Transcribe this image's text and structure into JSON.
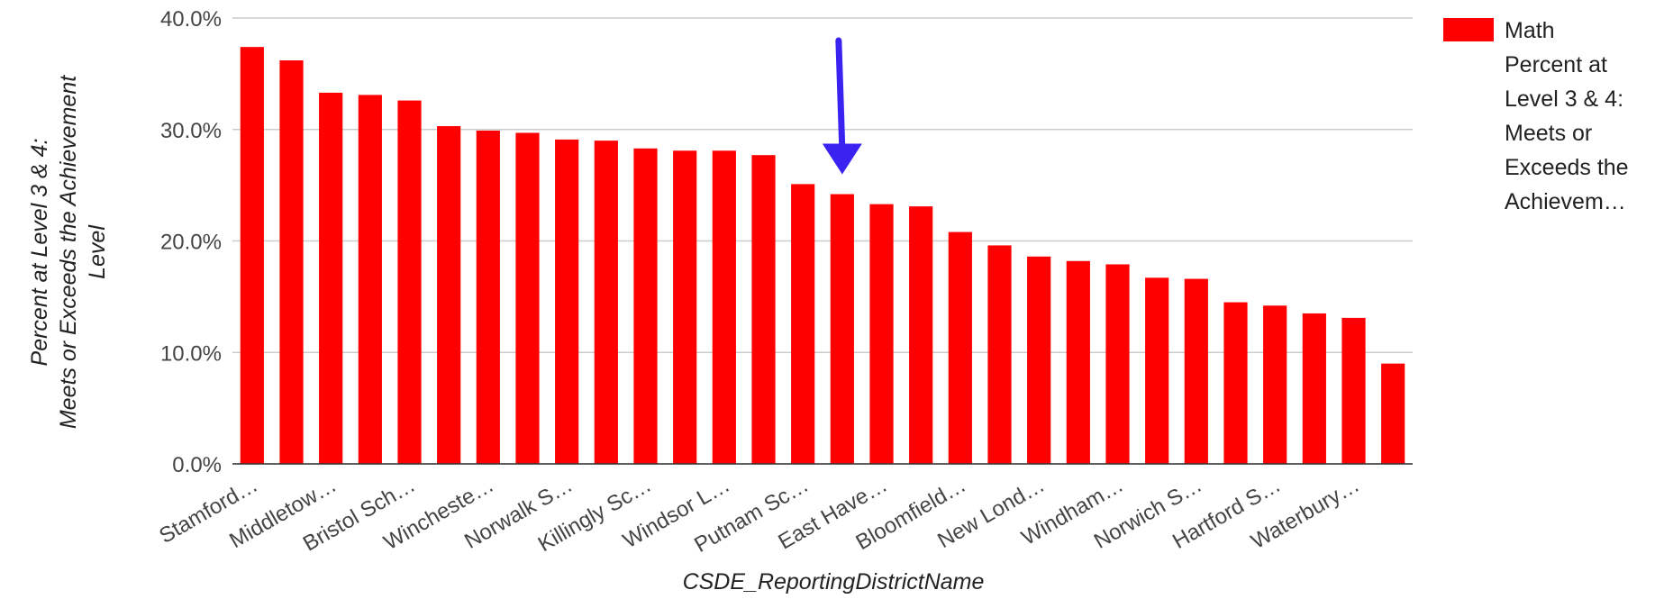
{
  "chart_data": {
    "type": "bar",
    "xlabel": "CSDE_ReportingDistrictName",
    "ylabel_lines": [
      "Percent at Level 3 & 4:",
      "Meets or Exceeds the Achievement",
      "Level"
    ],
    "ylim": [
      0,
      40
    ],
    "yticks": [
      0,
      10,
      20,
      30,
      40
    ],
    "ytick_labels": [
      "0.0%",
      "10.0%",
      "20.0%",
      "30.0%",
      "40.0%"
    ],
    "grid": true,
    "legend_position": "right",
    "series": [
      {
        "name_lines": [
          "Math",
          "Percent at",
          "Level 3 & 4:",
          "Meets or",
          "Exceeds the",
          "Achievem…"
        ],
        "color": "#ff0000",
        "values": [
          37.4,
          36.2,
          33.3,
          33.1,
          32.6,
          30.3,
          29.9,
          29.7,
          29.1,
          29.0,
          28.3,
          28.1,
          28.1,
          27.7,
          25.1,
          24.2,
          23.3,
          23.1,
          20.8,
          19.6,
          18.6,
          18.2,
          17.9,
          16.7,
          16.6,
          14.5,
          14.2,
          13.5,
          13.1,
          9.0
        ]
      }
    ],
    "category_labels": [
      "Stamford…",
      "Middletow…",
      "Bristol Sch…",
      "Wincheste…",
      "Norwalk S…",
      "Killingly Sc…",
      "Windsor L…",
      "Putnam Sc…",
      "East Have…",
      "Bloomfield…",
      "New Lond…",
      "Windham…",
      "Norwich S…",
      "Hartford S…",
      "Waterbury…"
    ],
    "category_label_every": 2,
    "annotation": {
      "type": "arrow",
      "color": "#3a22f0",
      "points_to_index": 15
    }
  }
}
